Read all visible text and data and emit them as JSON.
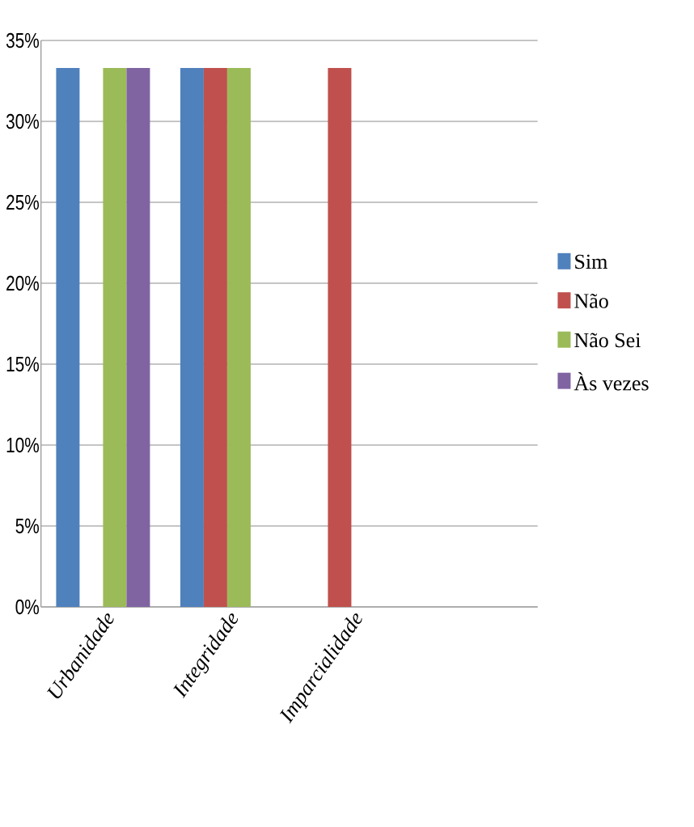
{
  "chart_data": {
    "type": "bar",
    "categories": [
      "Urbanidade",
      "Integridade",
      "Imparcialidade",
      null
    ],
    "series": [
      {
        "name": "Sim",
        "color": "#4f81bd",
        "values": [
          33.3,
          33.3,
          null,
          null
        ]
      },
      {
        "name": "Não",
        "color": "#c0504d",
        "values": [
          null,
          33.3,
          33.3,
          null
        ]
      },
      {
        "name": "Não Sei",
        "color": "#9bbb59",
        "values": [
          33.3,
          33.3,
          null,
          null
        ]
      },
      {
        "name": "Às vezes",
        "color": "#8064a2",
        "values": [
          33.3,
          null,
          null,
          null
        ]
      }
    ],
    "ylim": [
      0,
      35
    ],
    "yticks": [
      {
        "value": 0,
        "label": "0%"
      },
      {
        "value": 5,
        "label": "5%"
      },
      {
        "value": 10,
        "label": "10%"
      },
      {
        "value": 15,
        "label": "15%"
      },
      {
        "value": 20,
        "label": "20%"
      },
      {
        "value": 25,
        "label": "25%"
      },
      {
        "value": 30,
        "label": "30%"
      },
      {
        "value": 35,
        "label": "35%"
      }
    ],
    "grid": "y",
    "legend": "right"
  }
}
